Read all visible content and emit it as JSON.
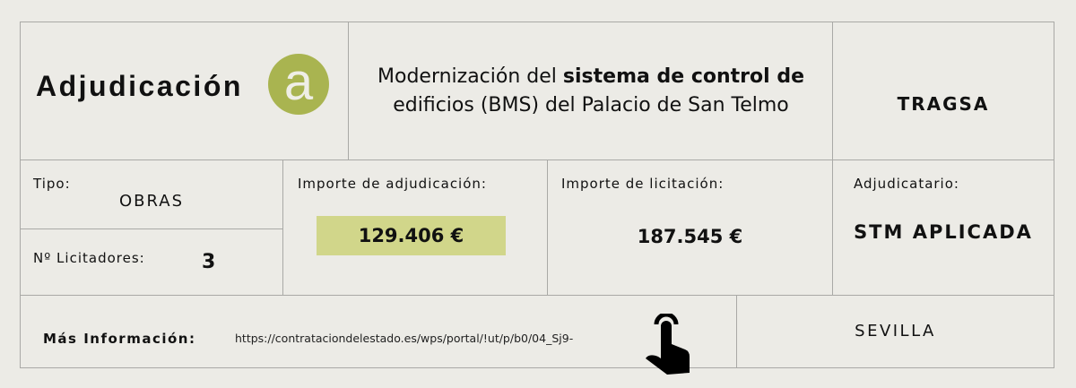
{
  "header": {
    "title": "Adjudicación",
    "badge": "a",
    "description_pre": "Modernización del ",
    "description_bold": "sistema de control de",
    "description_post": "edificios (BMS) del Palacio de San Telmo",
    "entity": "TRAGSA"
  },
  "details": {
    "tipo_label": "Tipo:",
    "tipo_value": "OBRAS",
    "licitadores_label": "Nº Licitadores:",
    "licitadores_value": "3",
    "adjudicacion_label": "Importe de adjudicación:",
    "adjudicacion_value": "129.406 €",
    "licitacion_label": "Importe de licitación:",
    "licitacion_value": "187.545 €",
    "adjudicatario_label": "Adjudicatario:",
    "adjudicatario_value": "STM APLICADA"
  },
  "footer": {
    "info_label": "Más Información:",
    "url": "https://contrataciondelestado.es/wps/portal/!ut/p/b0/04_Sj9-",
    "location": "SEVILLA"
  },
  "colors": {
    "badge": "#a9b450",
    "highlight": "#d1d68a",
    "background": "#ecebe6"
  },
  "icons": {
    "link": "hand-pointer-icon"
  }
}
